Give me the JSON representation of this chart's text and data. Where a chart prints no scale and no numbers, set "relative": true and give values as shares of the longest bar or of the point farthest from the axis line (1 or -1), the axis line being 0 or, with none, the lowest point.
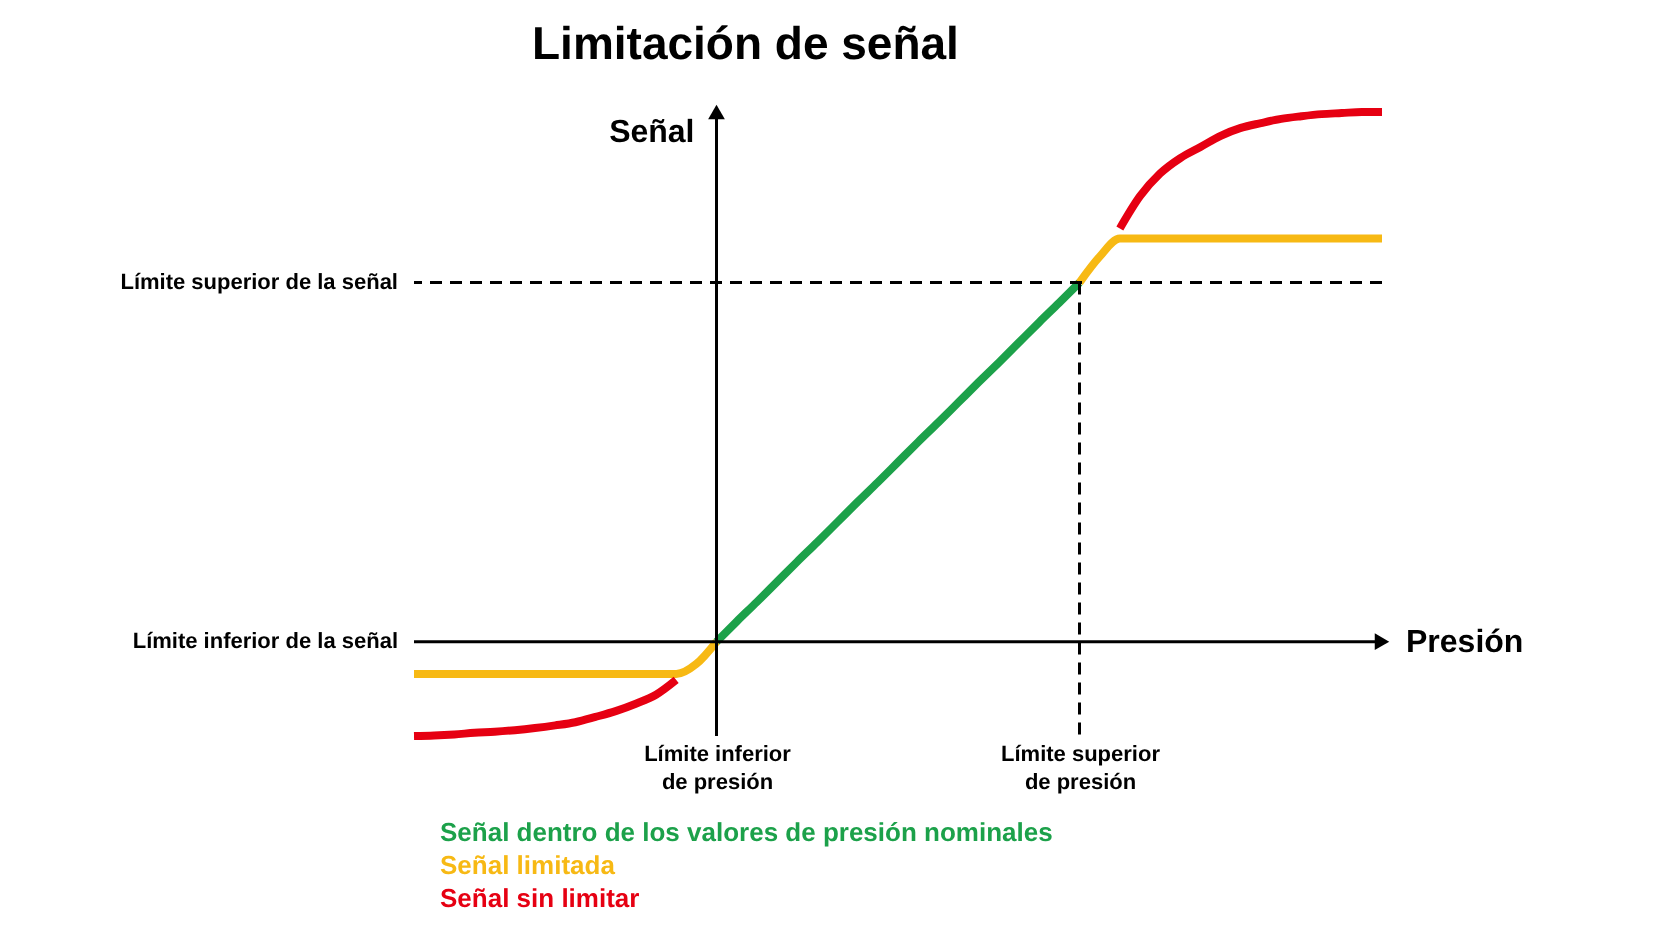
{
  "chart_data": {
    "type": "line",
    "title": "Limitación de señal",
    "xlabel": "Presión",
    "ylabel": "Señal",
    "relative": true,
    "legend": "bottom",
    "categories": [
      null,
      null,
      null,
      null,
      null,
      null,
      null,
      null,
      null,
      null,
      null,
      null,
      null,
      null,
      null,
      "Límite inferior de presión",
      null,
      null,
      null,
      null,
      null,
      null,
      null,
      null,
      null,
      null,
      null,
      null,
      null,
      null,
      null,
      null,
      null,
      "Límite superior de presión",
      null,
      null,
      null,
      null,
      null,
      null,
      null,
      null,
      null,
      null,
      null,
      null,
      null,
      null,
      null
    ],
    "series": [
      {
        "name": "Señal dentro de los valores de presión nominales",
        "color": "#1ca14a",
        "values": [
          null,
          null,
          null,
          null,
          null,
          null,
          null,
          null,
          null,
          null,
          null,
          null,
          null,
          null,
          null,
          0,
          0.038,
          0.075,
          0.113,
          0.151,
          0.188,
          0.226,
          0.264,
          0.301,
          0.339,
          0.377,
          0.414,
          0.452,
          0.49,
          0.527,
          0.565,
          0.603,
          0.64,
          0.678,
          null,
          null,
          null,
          null,
          null,
          null,
          null,
          null,
          null,
          null,
          null,
          null,
          null,
          null,
          null
        ]
      },
      {
        "name": "Señal limitada",
        "color": "#f7b914",
        "values": [
          -0.061,
          -0.061,
          -0.061,
          -0.061,
          -0.061,
          -0.061,
          -0.061,
          -0.061,
          -0.061,
          -0.061,
          -0.061,
          -0.061,
          -0.061,
          -0.061,
          -0.042,
          0,
          null,
          null,
          null,
          null,
          null,
          null,
          null,
          null,
          null,
          null,
          null,
          null,
          null,
          null,
          null,
          null,
          null,
          0.678,
          0.727,
          0.761,
          0.761,
          0.761,
          0.761,
          0.761,
          0.761,
          0.761,
          0.761,
          0.761,
          0.761,
          0.761,
          0.761,
          0.761,
          0.761
        ]
      },
      {
        "name": "Señal sin limitar",
        "color": "#e60012",
        "values": [
          -0.178,
          -0.177,
          -0.175,
          -0.172,
          -0.17,
          -0.167,
          -0.163,
          -0.158,
          -0.152,
          -0.142,
          -0.131,
          -0.117,
          -0.1,
          -0.072,
          null,
          null,
          null,
          null,
          null,
          null,
          null,
          null,
          null,
          null,
          null,
          null,
          null,
          null,
          null,
          null,
          null,
          null,
          null,
          null,
          null,
          0.78,
          0.841,
          0.884,
          0.913,
          0.934,
          0.955,
          0.97,
          0.979,
          0.987,
          0.992,
          0.996,
          0.998,
          1,
          1
        ]
      }
    ],
    "ref_lines": [
      {
        "axis": "x",
        "value": "Límite inferior de presión"
      },
      {
        "axis": "x",
        "value": "Límite superior de presión",
        "line_style": "dashed"
      },
      {
        "axis": "y",
        "value": 0,
        "label": "Límite inferior de la señal"
      },
      {
        "axis": "y",
        "value": 0.678,
        "label": "Límite superior de la señal",
        "line_style": "dashed"
      }
    ]
  }
}
